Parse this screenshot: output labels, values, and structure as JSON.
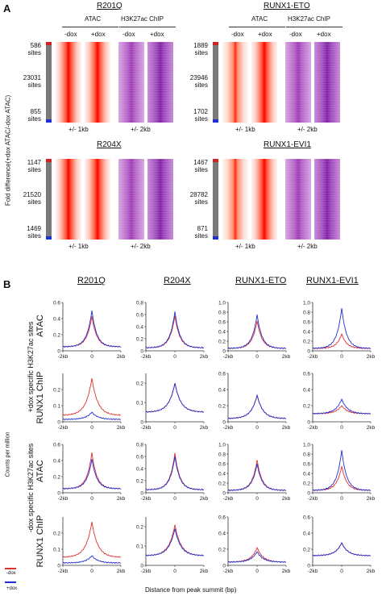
{
  "panel_a": {
    "letter": "A",
    "y_axis_label": "Fold difference(+dox ATAC/-dox ATAC)",
    "groups": [
      {
        "title": "R201Q",
        "atac_label": "ATAC",
        "chip_label": "H3K27ac ChIP",
        "minus_dox": "-dox",
        "plus_dox": "+dox",
        "top_sites": "586",
        "middle_sites": "23031",
        "bottom_sites": "855",
        "sites_word": "sites",
        "atac_range": "+/- 1kb",
        "chip_range": "+/- 2kb"
      },
      {
        "title": "RUNX1-ETO",
        "atac_label": "ATAC",
        "chip_label": "H3K27ac ChIP",
        "minus_dox": "-dox",
        "plus_dox": "+dox",
        "top_sites": "1889",
        "middle_sites": "23946",
        "bottom_sites": "1702",
        "sites_word": "sites",
        "atac_range": "+/- 1kb",
        "chip_range": "+/- 2kb"
      },
      {
        "title": "R204X",
        "atac_label": "",
        "chip_label": "",
        "minus_dox": "",
        "plus_dox": "",
        "top_sites": "1147",
        "middle_sites": "21520",
        "bottom_sites": "1469",
        "sites_word": "sites",
        "atac_range": "+/- 1kb",
        "chip_range": "+/- 2kb"
      },
      {
        "title": "RUNX1-EVI1",
        "atac_label": "",
        "chip_label": "",
        "minus_dox": "",
        "plus_dox": "",
        "top_sites": "1467",
        "middle_sites": "28782",
        "bottom_sites": "871",
        "sites_word": "sites",
        "atac_range": "+/- 1kb",
        "chip_range": "+/- 2kb"
      }
    ],
    "colors": {
      "top_bar": "#d62020",
      "mid_bar": "#7a7a7a",
      "bottom_bar": "#1a2fd6"
    }
  },
  "panel_b": {
    "letter": "B",
    "column_titles": [
      "R201Q",
      "R204X",
      "RUNX1-ETO",
      "RUNX1-EVI1"
    ],
    "row_group_labels": [
      "+dox specific H3K27ac sites",
      "-dox specific H3K27ac sites"
    ],
    "row_labels": [
      "ATAC",
      "RUNX1 ChIP",
      "ATAC",
      "RUNX1 ChIP"
    ],
    "y_axis_label": "Counts per million",
    "x_axis_label": "Distance from peak summit (bp)",
    "x_ticks": [
      "-2kb",
      "0",
      "2kb"
    ],
    "legend": [
      {
        "name": "-dox",
        "color": "#e03030"
      },
      {
        "name": "+dox",
        "color": "#2030d0"
      }
    ]
  },
  "chart_data": [
    {
      "type": "line",
      "row": "ATAC +dox specific",
      "col": "R201Q",
      "ylim": [
        0,
        0.6
      ],
      "yticks": [
        "0",
        "0.2",
        "0.4",
        "0.6"
      ],
      "peak": {
        "-dox": 0.43,
        "+dox": 0.5
      },
      "baseline": {
        "-dox": 0.05,
        "+dox": 0.05
      }
    },
    {
      "type": "line",
      "row": "ATAC +dox specific",
      "col": "R204X",
      "ylim": [
        0,
        0.8
      ],
      "yticks": [
        "0",
        "0.2",
        "0.4",
        "0.6",
        "0.8"
      ],
      "peak": {
        "-dox": 0.58,
        "+dox": 0.65
      },
      "baseline": {
        "-dox": 0.05,
        "+dox": 0.05
      }
    },
    {
      "type": "line",
      "row": "ATAC +dox specific",
      "col": "RUNX1-ETO",
      "ylim": [
        0,
        1.0
      ],
      "yticks": [
        "0",
        "0.2",
        "0.4",
        "0.6",
        "0.8",
        "1.0"
      ],
      "peak": {
        "-dox": 0.62,
        "+dox": 0.75
      },
      "baseline": {
        "-dox": 0.05,
        "+dox": 0.05
      }
    },
    {
      "type": "line",
      "row": "ATAC +dox specific",
      "col": "RUNX1-EVI1",
      "ylim": [
        0,
        1.0
      ],
      "yticks": [
        "0",
        "0.2",
        "0.4",
        "0.6",
        "0.8",
        "1.0"
      ],
      "peak": {
        "-dox": 0.35,
        "+dox": 0.88
      },
      "baseline": {
        "-dox": 0.05,
        "+dox": 0.05
      }
    },
    {
      "type": "line",
      "row": "RUNX1 ChIP +dox specific",
      "col": "R201Q",
      "ylim": [
        0,
        0.3
      ],
      "yticks": [
        "0",
        "0.1",
        "0.2"
      ],
      "peak": {
        "-dox": 0.27,
        "+dox": 0.06
      },
      "baseline": {
        "-dox": 0.04,
        "+dox": 0.015
      }
    },
    {
      "type": "line",
      "row": "RUNX1 ChIP +dox specific",
      "col": "R204X",
      "ylim": [
        0,
        0.25
      ],
      "yticks": [
        "0",
        "0.1",
        "0.2"
      ],
      "peak": {
        "-dox": 0.2,
        "+dox": 0.2
      },
      "baseline": {
        "-dox": 0.05,
        "+dox": 0.05
      }
    },
    {
      "type": "line",
      "row": "RUNX1 ChIP +dox specific",
      "col": "RUNX1-ETO",
      "ylim": [
        0,
        0.6
      ],
      "yticks": [
        "0",
        "0.2",
        "0.4",
        "0.6"
      ],
      "peak": {
        "-dox": 0.33,
        "+dox": 0.33
      },
      "baseline": {
        "-dox": 0.04,
        "+dox": 0.04
      }
    },
    {
      "type": "line",
      "row": "RUNX1 ChIP +dox specific",
      "col": "RUNX1-EVI1",
      "ylim": [
        0,
        0.6
      ],
      "yticks": [
        "0",
        "0.2",
        "0.4",
        "0.6"
      ],
      "peak": {
        "-dox": 0.2,
        "+dox": 0.28
      },
      "baseline": {
        "-dox": 0.1,
        "+dox": 0.1
      }
    },
    {
      "type": "line",
      "row": "ATAC -dox specific",
      "col": "R201Q",
      "ylim": [
        0,
        0.6
      ],
      "yticks": [
        "0",
        "0.2",
        "0.4",
        "0.6"
      ],
      "peak": {
        "-dox": 0.5,
        "+dox": 0.42
      },
      "baseline": {
        "-dox": 0.05,
        "+dox": 0.05
      }
    },
    {
      "type": "line",
      "row": "ATAC -dox specific",
      "col": "R204X",
      "ylim": [
        0,
        0.8
      ],
      "yticks": [
        "0",
        "0.2",
        "0.4",
        "0.6",
        "0.8"
      ],
      "peak": {
        "-dox": 0.66,
        "+dox": 0.6
      },
      "baseline": {
        "-dox": 0.05,
        "+dox": 0.05
      }
    },
    {
      "type": "line",
      "row": "ATAC -dox specific",
      "col": "RUNX1-ETO",
      "ylim": [
        0,
        1.0
      ],
      "yticks": [
        "0",
        "0.2",
        "0.4",
        "0.6",
        "0.8",
        "1.0"
      ],
      "peak": {
        "-dox": 0.68,
        "+dox": 0.6
      },
      "baseline": {
        "-dox": 0.05,
        "+dox": 0.05
      }
    },
    {
      "type": "line",
      "row": "ATAC -dox specific",
      "col": "RUNX1-EVI1",
      "ylim": [
        0,
        1.0
      ],
      "yticks": [
        "0",
        "0.2",
        "0.4",
        "0.6",
        "0.8",
        "1.0"
      ],
      "peak": {
        "-dox": 0.55,
        "+dox": 0.88
      },
      "baseline": {
        "-dox": 0.05,
        "+dox": 0.05
      }
    },
    {
      "type": "line",
      "row": "RUNX1 ChIP -dox specific",
      "col": "R201Q",
      "ylim": [
        0,
        0.3
      ],
      "yticks": [
        "0",
        "0.1",
        "0.2"
      ],
      "peak": {
        "-dox": 0.27,
        "+dox": 0.06
      },
      "baseline": {
        "-dox": 0.05,
        "+dox": 0.015
      }
    },
    {
      "type": "line",
      "row": "RUNX1 ChIP -dox specific",
      "col": "R204X",
      "ylim": [
        0,
        0.25
      ],
      "yticks": [
        "0",
        "0.1",
        "0.2"
      ],
      "peak": {
        "-dox": 0.21,
        "+dox": 0.19
      },
      "baseline": {
        "-dox": 0.05,
        "+dox": 0.05
      }
    },
    {
      "type": "line",
      "row": "RUNX1 ChIP -dox specific",
      "col": "RUNX1-ETO",
      "ylim": [
        0,
        0.6
      ],
      "yticks": [
        "0",
        "0.2",
        "0.4",
        "0.6"
      ],
      "peak": {
        "-dox": 0.22,
        "+dox": 0.17
      },
      "baseline": {
        "-dox": 0.04,
        "+dox": 0.04
      }
    },
    {
      "type": "line",
      "row": "RUNX1 ChIP -dox specific",
      "col": "RUNX1-EVI1",
      "ylim": [
        0,
        0.6
      ],
      "yticks": [
        "0",
        "0.2",
        "0.4",
        "0.6"
      ],
      "peak": {
        "-dox": 0.28,
        "+dox": 0.28
      },
      "baseline": {
        "-dox": 0.12,
        "+dox": 0.12
      }
    }
  ]
}
